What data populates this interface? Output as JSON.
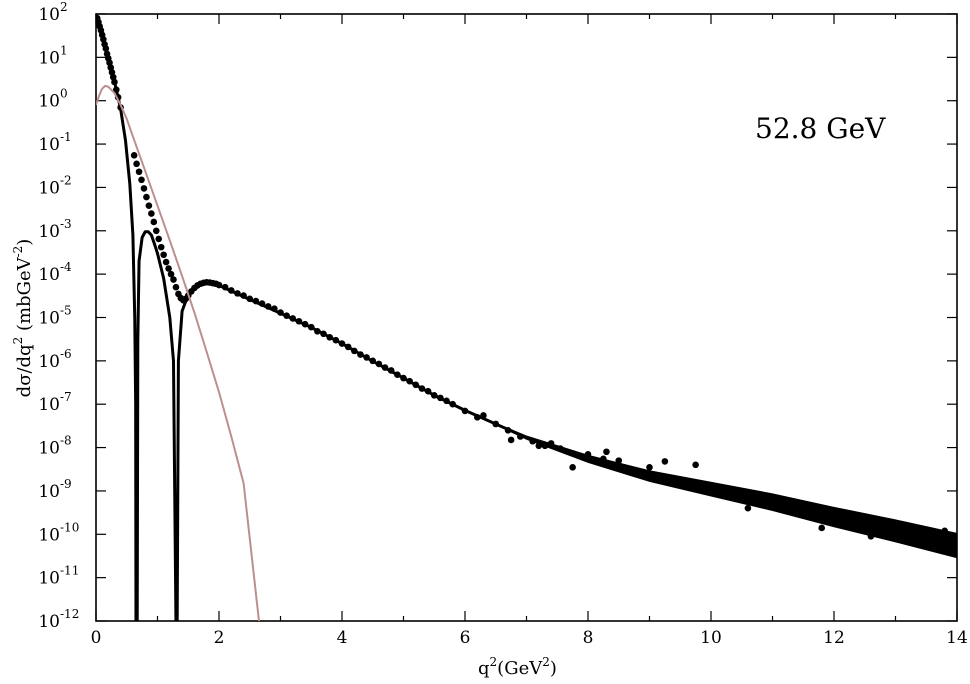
{
  "chart_data": {
    "type": "scatter",
    "title": "",
    "annotation": "52.8 GeV",
    "xlabel": {
      "base": "q",
      "sup": "2",
      "rest": "(GeV",
      "unit_sup": "2",
      "close": ")"
    },
    "ylabel": {
      "part1": "dσ/dq",
      "sup1": "2",
      "part2": " (mbGeV",
      "sup2": "-2",
      "part3": ")"
    },
    "xlim": [
      0,
      14
    ],
    "ylim_log10": [
      -12,
      2
    ],
    "y_scale": "log",
    "grid": false,
    "x_ticks": [
      "0",
      "2",
      "4",
      "6",
      "8",
      "10",
      "12",
      "14"
    ],
    "y_tick_base": "10",
    "y_tick_exponents": [
      "2",
      "1",
      "0",
      "-1",
      "-2",
      "-3",
      "-4",
      "-5",
      "-6",
      "-7",
      "-8",
      "-9",
      "-10",
      "-11",
      "-12"
    ],
    "series": [
      {
        "kind": "points",
        "color": "#000000",
        "points": [
          [
            0.02,
            80
          ],
          [
            0.04,
            65
          ],
          [
            0.06,
            52
          ],
          [
            0.08,
            42
          ],
          [
            0.1,
            33
          ],
          [
            0.12,
            26
          ],
          [
            0.14,
            20
          ],
          [
            0.16,
            16
          ],
          [
            0.18,
            12
          ],
          [
            0.2,
            9.5
          ],
          [
            0.22,
            7.5
          ],
          [
            0.24,
            5.8
          ],
          [
            0.26,
            4.5
          ],
          [
            0.28,
            3.5
          ],
          [
            0.3,
            2.7
          ],
          [
            0.33,
            1.8
          ],
          [
            0.36,
            1.2
          ],
          [
            0.4,
            0.7
          ],
          [
            0.62,
            0.055
          ],
          [
            0.66,
            0.035
          ],
          [
            0.7,
            0.023
          ],
          [
            0.74,
            0.015
          ],
          [
            0.78,
            0.0095
          ],
          [
            0.82,
            0.006
          ],
          [
            0.86,
            0.0038
          ],
          [
            0.9,
            0.0025
          ],
          [
            0.94,
            0.0016
          ],
          [
            0.98,
            0.001
          ],
          [
            1.02,
            0.00065
          ],
          [
            1.06,
            0.00042
          ],
          [
            1.1,
            0.00028
          ],
          [
            1.14,
            0.00019
          ],
          [
            1.18,
            0.000135
          ],
          [
            1.22,
            0.0001
          ],
          [
            1.26,
            7.5e-05
          ],
          [
            1.3,
            5e-05
          ],
          [
            1.34,
            3.5e-05
          ],
          [
            1.38,
            2.8e-05
          ],
          [
            1.42,
            2.5e-05
          ],
          [
            1.46,
            2.7e-05
          ],
          [
            1.5,
            3.2e-05
          ],
          [
            1.55,
            4e-05
          ],
          [
            1.6,
            4.8e-05
          ],
          [
            1.65,
            5.5e-05
          ],
          [
            1.7,
            6e-05
          ],
          [
            1.75,
            6.3e-05
          ],
          [
            1.8,
            6.5e-05
          ],
          [
            1.85,
            6.4e-05
          ],
          [
            1.9,
            6.2e-05
          ],
          [
            1.95,
            6e-05
          ],
          [
            2.0,
            5.6e-05
          ],
          [
            2.1,
            5e-05
          ],
          [
            2.2,
            4.2e-05
          ],
          [
            2.3,
            3.6e-05
          ],
          [
            2.4,
            3.2e-05
          ],
          [
            2.5,
            2.7e-05
          ],
          [
            2.6,
            2.4e-05
          ],
          [
            2.7,
            2.1e-05
          ],
          [
            2.8,
            1.8e-05
          ],
          [
            2.9,
            1.6e-05
          ],
          [
            3.0,
            1.3e-05
          ],
          [
            3.1,
            1.1e-05
          ],
          [
            3.2,
            9.5e-06
          ],
          [
            3.3,
            8.2e-06
          ],
          [
            3.4,
            7e-06
          ],
          [
            3.5,
            6e-06
          ],
          [
            3.6,
            4.8e-06
          ],
          [
            3.7,
            4.2e-06
          ],
          [
            3.8,
            3.5e-06
          ],
          [
            3.9,
            3e-06
          ],
          [
            4.0,
            2.5e-06
          ],
          [
            4.1,
            2.1e-06
          ],
          [
            4.2,
            1.7e-06
          ],
          [
            4.3,
            1.4e-06
          ],
          [
            4.4,
            1.2e-06
          ],
          [
            4.5,
            1e-06
          ],
          [
            4.6,
            8.5e-07
          ],
          [
            4.7,
            7e-07
          ],
          [
            4.8,
            6e-07
          ],
          [
            4.9,
            4.8e-07
          ],
          [
            5.0,
            4e-07
          ],
          [
            5.1,
            3.4e-07
          ],
          [
            5.2,
            2.8e-07
          ],
          [
            5.3,
            2.3e-07
          ],
          [
            5.4,
            2e-07
          ],
          [
            5.5,
            1.6e-07
          ],
          [
            5.6,
            1.4e-07
          ],
          [
            5.7,
            1.2e-07
          ],
          [
            5.8,
            1e-07
          ],
          [
            6.0,
            7e-08
          ],
          [
            6.2,
            5e-08
          ],
          [
            6.3,
            5.5e-08
          ],
          [
            6.5,
            3.5e-08
          ],
          [
            6.7,
            2.5e-08
          ],
          [
            6.75,
            1.5e-08
          ],
          [
            6.9,
            1.8e-08
          ],
          [
            7.1,
            1.4e-08
          ],
          [
            7.2,
            1.1e-08
          ],
          [
            7.3,
            1.1e-08
          ],
          [
            7.4,
            1.25e-08
          ],
          [
            7.55,
            9.5e-09
          ],
          [
            7.75,
            3.5e-09
          ],
          [
            8.0,
            7e-09
          ],
          [
            8.25,
            5.5e-09
          ],
          [
            8.3,
            8e-09
          ],
          [
            8.5,
            5e-09
          ],
          [
            8.6,
            3e-09
          ],
          [
            8.75,
            2.8e-09
          ],
          [
            9.0,
            3.5e-09
          ],
          [
            9.25,
            4.8e-09
          ],
          [
            9.4,
            1.5e-09
          ],
          [
            9.75,
            4e-09
          ],
          [
            10.0,
            1.2e-09
          ],
          [
            10.3,
            9e-10
          ],
          [
            10.6,
            4e-10
          ],
          [
            10.6,
            7.8e-10
          ],
          [
            11.0,
            6.5e-10
          ],
          [
            11.4,
            4e-10
          ],
          [
            11.8,
            1.4e-10
          ],
          [
            12.2,
            2.2e-10
          ],
          [
            12.6,
            9e-11
          ],
          [
            12.6,
            1.4e-10
          ],
          [
            13.0,
            1.4e-10
          ],
          [
            13.8,
            1.2e-10
          ]
        ]
      },
      {
        "kind": "line",
        "color": "#000000",
        "points": [
          [
            0.0,
            95
          ],
          [
            0.1,
            33
          ],
          [
            0.2,
            10
          ],
          [
            0.3,
            2.8
          ],
          [
            0.4,
            0.65
          ],
          [
            0.48,
            0.12
          ],
          [
            0.55,
            0.012
          ],
          [
            0.6,
            0.0008
          ],
          [
            0.63,
            1e-05
          ],
          [
            0.645,
            1e-07
          ],
          [
            0.65,
            1e-12
          ],
          [
            0.67,
            1e-12
          ],
          [
            0.68,
            3e-06
          ],
          [
            0.7,
            0.0002
          ],
          [
            0.75,
            0.0007
          ],
          [
            0.8,
            0.00095
          ],
          [
            0.85,
            0.00095
          ],
          [
            0.9,
            0.0008
          ],
          [
            0.95,
            0.0005
          ],
          [
            1.0,
            0.0003
          ],
          [
            1.1,
            8e-05
          ],
          [
            1.2,
            1e-05
          ],
          [
            1.26,
            1e-06
          ],
          [
            1.3,
            1e-12
          ],
          [
            1.32,
            1e-12
          ],
          [
            1.34,
            1e-06
          ],
          [
            1.4,
            1.4e-05
          ],
          [
            1.5,
            3.4e-05
          ],
          [
            1.6,
            5e-05
          ],
          [
            1.8,
            6.2e-05
          ],
          [
            2.0,
            5.5e-05
          ],
          [
            2.5,
            2.6e-05
          ],
          [
            3.0,
            1.25e-05
          ],
          [
            3.5,
            5.9e-06
          ],
          [
            4.0,
            2.5e-06
          ],
          [
            4.5,
            9.8e-07
          ],
          [
            5.0,
            4e-07
          ],
          [
            5.5,
            1.6e-07
          ],
          [
            6.0,
            7.2e-08
          ],
          [
            7.0,
            1.7e-08
          ],
          [
            8.0,
            5.5e-09
          ],
          [
            9.0,
            2.2e-09
          ],
          [
            10.0,
            1.1e-09
          ],
          [
            11.0,
            5.5e-10
          ],
          [
            12.0,
            2.5e-10
          ],
          [
            13.0,
            1.2e-10
          ],
          [
            14.0,
            5.5e-11
          ]
        ]
      },
      {
        "kind": "line",
        "color": "#bc8f8f",
        "points": [
          [
            0.0,
            0.8
          ],
          [
            0.05,
            1.3
          ],
          [
            0.1,
            1.9
          ],
          [
            0.15,
            2.2
          ],
          [
            0.2,
            2.1
          ],
          [
            0.3,
            1.5
          ],
          [
            0.4,
            0.8
          ],
          [
            0.5,
            0.38
          ],
          [
            0.6,
            0.15
          ],
          [
            0.7,
            0.06
          ],
          [
            0.8,
            0.024
          ],
          [
            1.0,
            0.0038
          ],
          [
            1.2,
            0.0006
          ],
          [
            1.4,
            9e-05
          ],
          [
            1.6,
            1.3e-05
          ],
          [
            1.8,
            1.6e-06
          ],
          [
            2.0,
            1.9e-07
          ],
          [
            2.2,
            1.8e-08
          ],
          [
            2.4,
            1.5e-09
          ],
          [
            2.65,
            1e-12
          ]
        ]
      }
    ]
  }
}
